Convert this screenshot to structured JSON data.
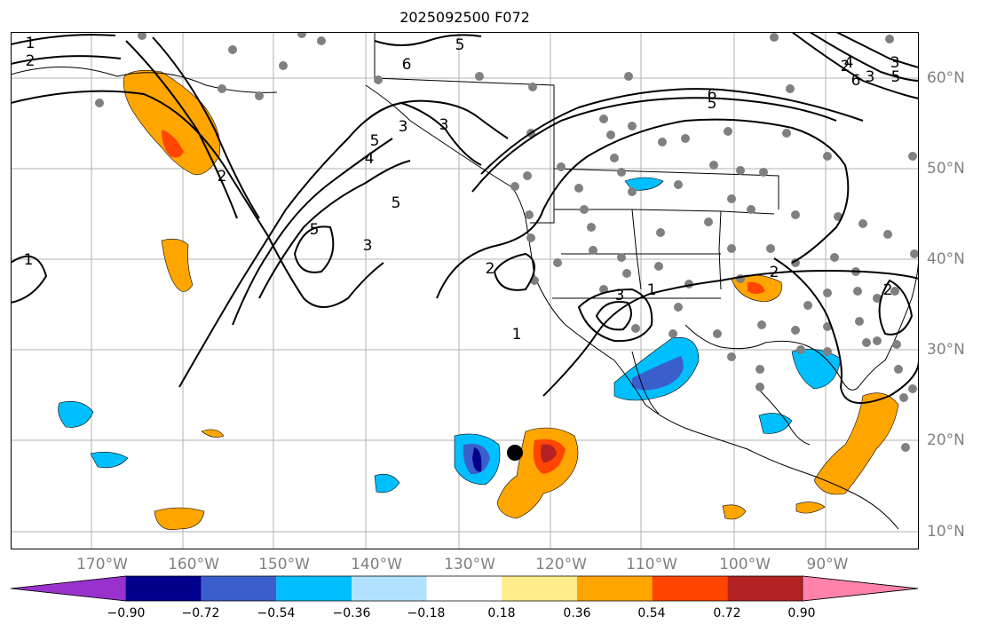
{
  "title": "2025092500 F072",
  "longitude_labels": [
    "170°W",
    "160°W",
    "150°W",
    "140°W",
    "130°W",
    "120°W",
    "110°W",
    "100°W",
    "90°W"
  ],
  "latitude_labels": [
    "60°N",
    "50°N",
    "40°N",
    "30°N",
    "20°N",
    "10°N"
  ],
  "contour_labels": [
    "1",
    "2",
    "1",
    "2",
    "3",
    "4",
    "5",
    "3",
    "5",
    "5",
    "3",
    "6",
    "5",
    "6",
    "5",
    "2",
    "1",
    "3",
    "1",
    "2",
    "2",
    "3",
    "6",
    "4",
    "3",
    "5",
    "2"
  ],
  "colorbar": {
    "tick_labels": [
      "−0.90",
      "−0.72",
      "−0.54",
      "−0.36",
      "−0.18",
      "0.18",
      "0.36",
      "0.54",
      "0.72",
      "0.90"
    ],
    "colors": [
      "#9932CC",
      "#00008B",
      "#3A5FCD",
      "#00BFFF",
      "#B0E2FF",
      "#FFFFFF",
      "#FFEC8B",
      "#FFA500",
      "#FF4500",
      "#B22222",
      "#FF82AB"
    ]
  },
  "colors": {
    "grid": "#b0b0b0",
    "coast": "#000000",
    "stations": "#808080",
    "contours": "#000000"
  }
}
